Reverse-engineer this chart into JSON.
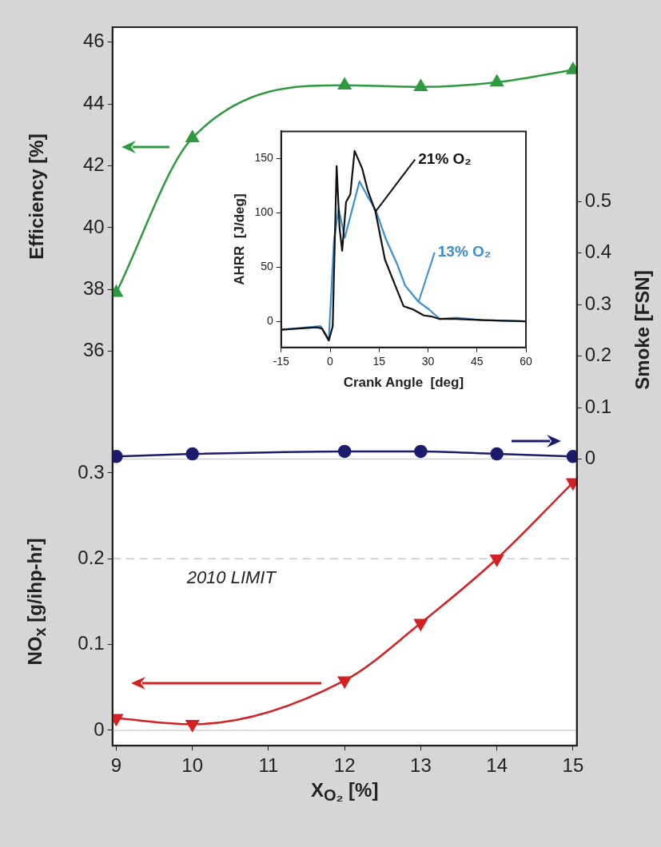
{
  "chart_data": [
    {
      "type": "line",
      "xlabel": "X$_{O₂}$ [%]",
      "ylabel": "Efficiency  [%]",
      "y2label": "Smoke  [FSN]",
      "y3label": "NO$_{x}$  [g/ihp-hr]",
      "x": [
        9,
        10,
        12,
        13,
        14,
        15
      ],
      "xlim": [
        8.95,
        15.05
      ],
      "xticks": [
        9,
        10,
        11,
        12,
        13,
        14,
        15
      ],
      "ylim": [
        23.26,
        46.48
      ],
      "yticks": [
        36,
        38,
        40,
        42,
        44,
        46
      ],
      "y2lim": [
        -0.556,
        0.838
      ],
      "y2ticks": [
        0,
        0.1,
        0.2,
        0.3,
        0.4,
        0.5
      ],
      "y3lim": [
        -0.018,
        0.82
      ],
      "y3ticks": [
        0,
        0.1,
        0.2,
        0.3
      ],
      "series": [
        {
          "color": "#2e9a40",
          "values": [
            37.9,
            42.9,
            44.6,
            44.55,
            44.7,
            45.1
          ],
          "marker": "triangle"
        },
        {
          "color": "#1c1c6e",
          "values": [
            0.005,
            0.01,
            0.015,
            0.015,
            0.01,
            0.005
          ],
          "axis": "y2",
          "marker": "circle"
        },
        {
          "color": "#d42020",
          "values": [
            0.014,
            0.007,
            0.058,
            0.125,
            0.2,
            0.289
          ],
          "axis": "y3",
          "marker": "triangle_down"
        }
      ],
      "ref_lines": [
        {
          "axis": "y3",
          "value": 0.2,
          "label": "2010 LIMIT",
          "color": "#c8c8c8",
          "line_style": "dashed"
        },
        {
          "axis": "y3",
          "value": 0,
          "color": "#d0d0d0"
        },
        {
          "axis": "y2",
          "value": 0,
          "color": "#d0d0d0"
        }
      ]
    },
    {
      "type": "line",
      "xlabel": "Crank Angle  [deg]",
      "ylabel": "AHRR  [J/deg]",
      "xlim": [
        -15,
        60
      ],
      "xticks": [
        -15,
        0,
        15,
        30,
        45,
        60
      ],
      "ylim": [
        -24,
        175
      ],
      "yticks": [
        0,
        50,
        100,
        150
      ],
      "marker": "none",
      "series": [
        {
          "name": "21% O₂",
          "color": "#111111",
          "x": [
            -15,
            -4.1,
            -2.5,
            -0.4,
            0.8,
            2,
            2.9,
            3.7,
            4.9,
            6.2,
            7.5,
            9.8,
            11.5,
            13.9,
            16.8,
            19.7,
            22.5,
            25.4,
            28.7,
            31.2,
            33.6,
            38.5,
            46.7,
            60
          ],
          "values": [
            -7.7,
            -5.5,
            -6.6,
            -17.6,
            -4.4,
            143,
            86,
            65,
            110,
            117,
            157,
            141,
            121,
            101,
            57,
            35,
            14,
            11,
            5.5,
            4.4,
            2.2,
            2.2,
            1.1,
            0
          ]
        },
        {
          "name": "13% O₂",
          "color": "#3a8fd0",
          "x": [
            -15,
            -2.9,
            -0.4,
            1.2,
            2.6,
            4.5,
            9,
            11.5,
            13.9,
            17.2,
            20.5,
            23,
            27.1,
            30.3,
            33.6,
            38.5,
            46.7,
            60
          ],
          "values": [
            -7.7,
            -4.4,
            -16.5,
            75,
            104,
            77,
            129,
            115,
            103,
            75,
            53,
            33,
            18,
            11,
            2.2,
            3.3,
            1.1,
            0
          ]
        }
      ]
    }
  ]
}
